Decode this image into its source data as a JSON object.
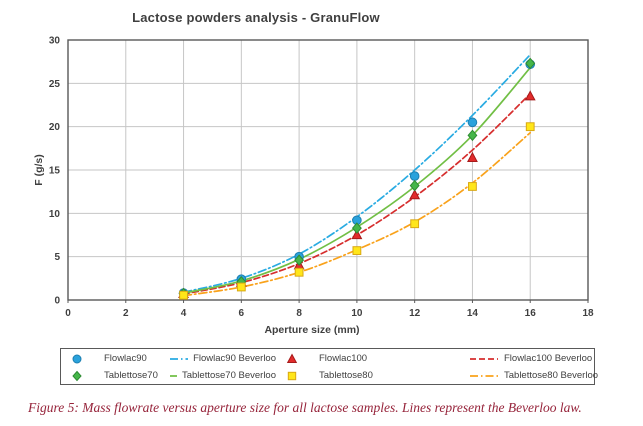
{
  "title": "Lactose powders analysis - GranuFlow",
  "caption": "Figure 5: Mass flowrate versus aperture size for all lactose samples. Lines represent the Beverloo law.",
  "chart_data": {
    "type": "scatter",
    "title": "Lactose powders analysis - GranuFlow",
    "xlabel": "Aperture size (mm)",
    "ylabel": "F (g/s)",
    "xlim": [
      0,
      18
    ],
    "ylim": [
      0,
      30
    ],
    "xticks": [
      0,
      2,
      4,
      6,
      8,
      10,
      12,
      14,
      16,
      18
    ],
    "yticks": [
      0,
      5,
      10,
      15,
      20,
      25,
      30
    ],
    "grid": true,
    "legend_position": "bottom",
    "x": [
      4,
      6,
      8,
      10,
      12,
      14,
      16
    ],
    "series": [
      {
        "name": "Flowlac90",
        "kind": "scatter",
        "marker": "circle",
        "color": "#2aa2dc",
        "edge": "#1d7fb0",
        "values": [
          0.8,
          2.4,
          5.0,
          9.2,
          14.3,
          20.5,
          27.2
        ]
      },
      {
        "name": "Flowlac90 Beverloo",
        "kind": "line",
        "dash": "dashdot",
        "color": "#29abe2",
        "values": [
          0.9,
          2.5,
          5.3,
          9.6,
          15.0,
          21.3,
          28.3
        ]
      },
      {
        "name": "Flowlac100",
        "kind": "scatter",
        "marker": "triangle",
        "color": "#e22b2b",
        "edge": "#a61b1b",
        "values": [
          0.7,
          2.0,
          4.0,
          7.5,
          12.1,
          16.4,
          23.5
        ]
      },
      {
        "name": "Flowlac100 Beverloo",
        "kind": "line",
        "dash": "dashed",
        "color": "#d62e2e",
        "values": [
          0.7,
          2.0,
          4.2,
          7.5,
          11.9,
          17.3,
          23.8
        ]
      },
      {
        "name": "Tablettose70",
        "kind": "scatter",
        "marker": "diamond",
        "color": "#45b649",
        "edge": "#2e8b33",
        "values": [
          0.75,
          2.1,
          4.6,
          8.3,
          13.2,
          19.0,
          27.3
        ]
      },
      {
        "name": "Tablettose70 Beverloo",
        "kind": "line",
        "dash": "solid",
        "color": "#71bf45",
        "values": [
          0.8,
          2.2,
          4.7,
          8.4,
          13.1,
          19.0,
          26.8
        ]
      },
      {
        "name": "Tablettose80",
        "kind": "scatter",
        "marker": "square",
        "color": "#ffe619",
        "edge": "#d9a813",
        "values": [
          0.55,
          1.5,
          3.2,
          5.7,
          8.8,
          13.1,
          20.0
        ]
      },
      {
        "name": "Tablettose80 Beverloo",
        "kind": "line",
        "dash": "dashdot",
        "color": "#f9a21b",
        "values": [
          0.5,
          1.5,
          3.2,
          5.8,
          9.0,
          13.5,
          19.3
        ]
      }
    ]
  },
  "style": {
    "grid_color": "#c6c6c6",
    "border_color": "#595959",
    "text_color": "#3f3f3f",
    "caption_color": "#96233a"
  }
}
